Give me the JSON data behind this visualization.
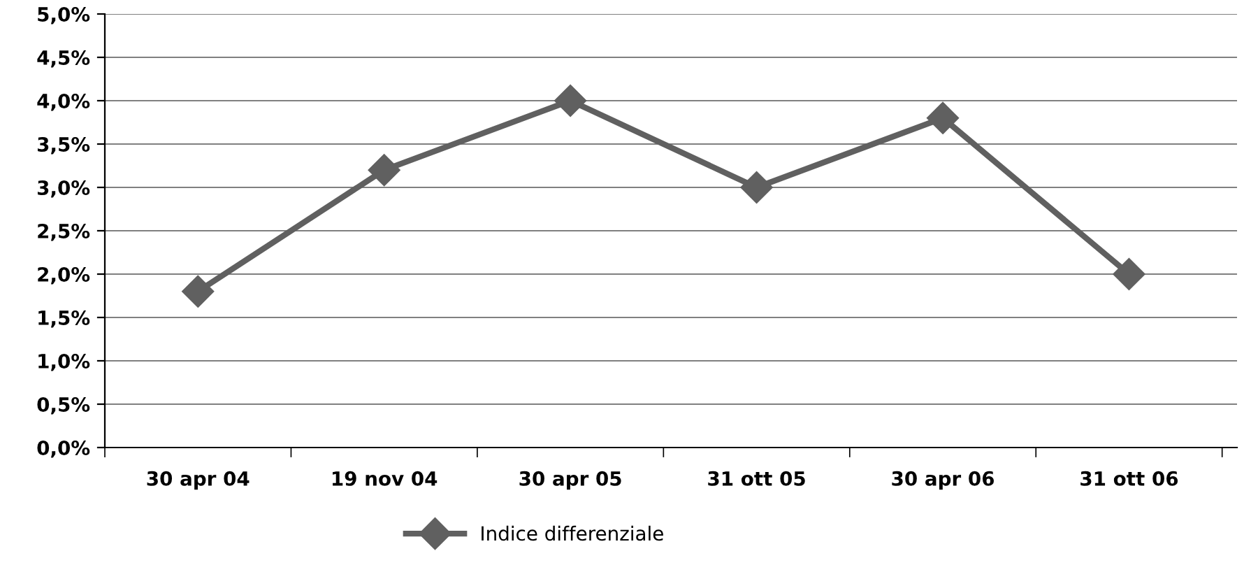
{
  "chart_data": {
    "type": "line",
    "categories": [
      "30 apr 04",
      "19 nov 04",
      "30 apr 05",
      "31 ott 05",
      "30 apr 06",
      "31 ott 06"
    ],
    "series": [
      {
        "name": "Indice differenziale",
        "color": "#606060",
        "values": [
          1.8,
          3.2,
          4.0,
          3.0,
          3.8,
          2.0
        ]
      }
    ],
    "ylim": [
      0,
      5
    ],
    "yticks": [
      {
        "value": 0,
        "label": "0,0%"
      },
      {
        "value": 0.5,
        "label": "0,5%"
      },
      {
        "value": 1,
        "label": "1,0%"
      },
      {
        "value": 1.5,
        "label": "1,5%"
      },
      {
        "value": 2,
        "label": "2,0%"
      },
      {
        "value": 2.5,
        "label": "2,5%"
      },
      {
        "value": 3,
        "label": "3,0%"
      },
      {
        "value": 3.5,
        "label": "3,5%"
      },
      {
        "value": 4,
        "label": "4,0%"
      },
      {
        "value": 4.5,
        "label": "4,5%"
      },
      {
        "value": 5,
        "label": "5,0%"
      }
    ],
    "grid": "y",
    "legend": "bottom",
    "marker": "diamond",
    "line_style": "solid"
  }
}
